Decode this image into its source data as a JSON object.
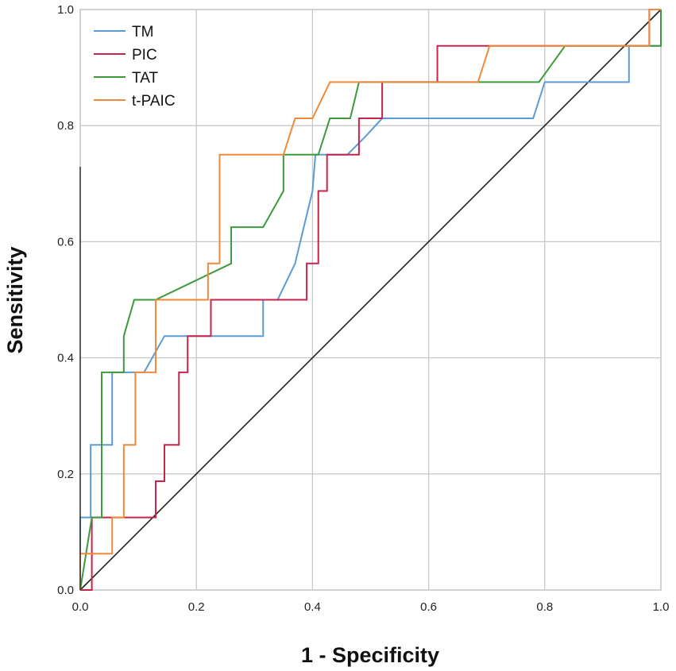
{
  "chart_data": {
    "type": "line",
    "title": "",
    "xlabel": "1 - Specificity",
    "ylabel": "Sensitivity",
    "xlim": [
      0,
      1
    ],
    "ylim": [
      0,
      1
    ],
    "x_ticks": [
      "0.0",
      "0.2",
      "0.4",
      "0.6",
      "0.8",
      "1.0"
    ],
    "y_ticks": [
      "0.0",
      "0.2",
      "0.4",
      "0.6",
      "0.8",
      "1.0"
    ],
    "grid": true,
    "legend_position": "top-left",
    "reference_line": {
      "name": "diagonal",
      "x": [
        0,
        1
      ],
      "y": [
        0,
        1
      ],
      "color": "#222222"
    },
    "series": [
      {
        "name": "TM",
        "color": "#5b9bd5",
        "x": [
          0,
          0,
          0.018,
          0.018,
          0.055,
          0.055,
          0.11,
          0.145,
          0.315,
          0.315,
          0.34,
          0.37,
          0.4,
          0.405,
          0.405,
          0.43,
          0.46,
          0.49,
          0.52,
          0.52,
          0.78,
          0.8,
          0.945,
          0.945,
          0.98,
          1.0
        ],
        "y": [
          0,
          0.125,
          0.125,
          0.25,
          0.25,
          0.375,
          0.375,
          0.4375,
          0.4375,
          0.5,
          0.5,
          0.5625,
          0.6875,
          0.75,
          0.75,
          0.75,
          0.75,
          0.78,
          0.8125,
          0.8125,
          0.8125,
          0.875,
          0.875,
          0.9375,
          0.9375,
          0.9375
        ]
      },
      {
        "name": "PIC",
        "color": "#c8234a",
        "x": [
          0,
          0.02,
          0.02,
          0.13,
          0.13,
          0.145,
          0.145,
          0.17,
          0.17,
          0.185,
          0.185,
          0.225,
          0.225,
          0.39,
          0.39,
          0.41,
          0.41,
          0.425,
          0.425,
          0.48,
          0.48,
          0.52,
          0.52,
          0.615,
          0.615,
          0.7,
          0.8,
          0.98,
          0.98,
          1.0
        ],
        "y": [
          0,
          0,
          0.125,
          0.125,
          0.1875,
          0.1875,
          0.25,
          0.25,
          0.375,
          0.375,
          0.4375,
          0.4375,
          0.5,
          0.5,
          0.5625,
          0.5625,
          0.6875,
          0.6875,
          0.75,
          0.75,
          0.8125,
          0.8125,
          0.875,
          0.875,
          0.9375,
          0.9375,
          0.9375,
          0.9375,
          1.0,
          1.0
        ]
      },
      {
        "name": "TAT",
        "color": "#3c9a3c",
        "x": [
          0,
          0.02,
          0.02,
          0.037,
          0.037,
          0.075,
          0.075,
          0.093,
          0.13,
          0.26,
          0.26,
          0.26,
          0.315,
          0.35,
          0.35,
          0.41,
          0.43,
          0.465,
          0.48,
          0.52,
          0.79,
          0.835,
          0.98,
          1.0,
          1.0
        ],
        "y": [
          0,
          0.125,
          0.125,
          0.125,
          0.375,
          0.375,
          0.4375,
          0.5,
          0.5,
          0.5625,
          0.5625,
          0.625,
          0.625,
          0.6875,
          0.75,
          0.75,
          0.8125,
          0.8125,
          0.875,
          0.875,
          0.875,
          0.9375,
          0.9375,
          0.9375,
          1.0
        ]
      },
      {
        "name": "t-PAIC",
        "color": "#f08a3a",
        "x": [
          0,
          0,
          0.055,
          0.055,
          0.075,
          0.075,
          0.095,
          0.095,
          0.13,
          0.13,
          0.22,
          0.22,
          0.24,
          0.24,
          0.35,
          0.37,
          0.4,
          0.43,
          0.52,
          0.685,
          0.705,
          0.98,
          0.98,
          1.0
        ],
        "y": [
          0,
          0.0625,
          0.0625,
          0.125,
          0.125,
          0.25,
          0.25,
          0.375,
          0.375,
          0.5,
          0.5,
          0.5625,
          0.5625,
          0.75,
          0.75,
          0.8125,
          0.8125,
          0.875,
          0.875,
          0.875,
          0.9375,
          0.9375,
          1.0,
          1.0
        ]
      }
    ]
  }
}
